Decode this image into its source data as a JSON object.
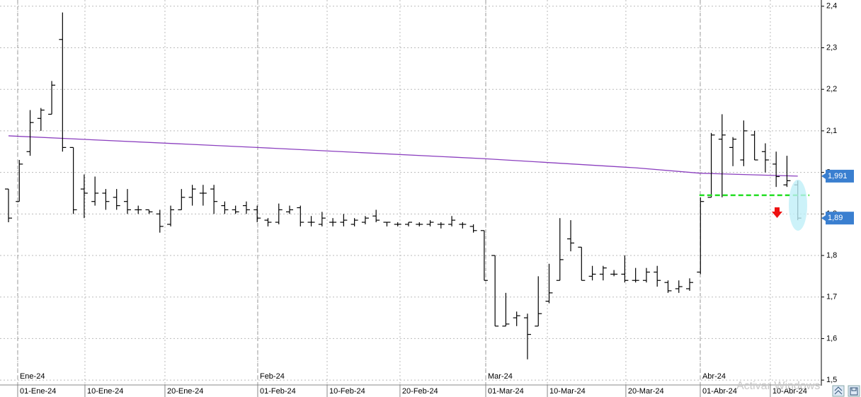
{
  "chart_data": {
    "type": "ohlc",
    "color": "#000000",
    "open": [
      1.96,
      1.93,
      2.05,
      2.13,
      2.14,
      2.32,
      2.06,
      1.96,
      1.93,
      1.95,
      1.94,
      1.93,
      1.91,
      1.91,
      1.9,
      1.875,
      1.91,
      1.94,
      1.95,
      1.96,
      1.92,
      1.91,
      1.92,
      1.91,
      1.885,
      1.88,
      1.905,
      1.915,
      1.88,
      1.875,
      1.88,
      1.88,
      1.875,
      1.88,
      1.895,
      1.88,
      1.875,
      1.875,
      1.875,
      1.875,
      1.875,
      1.875,
      1.875,
      1.87,
      1.86,
      1.8,
      1.63,
      1.65,
      1.65,
      1.63,
      1.69,
      1.74,
      1.84,
      1.82,
      1.75,
      1.755,
      1.755,
      1.755,
      1.74,
      1.74,
      1.76,
      1.735,
      1.72,
      1.72,
      1.76,
      1.94,
      2.08,
      2.06,
      2.03,
      2.09,
      2.05,
      2.02,
      1.97,
      1.97
    ],
    "high": [
      1.96,
      2.03,
      2.15,
      2.155,
      2.22,
      2.385,
      2.06,
      1.995,
      1.99,
      1.96,
      1.96,
      1.96,
      1.92,
      1.91,
      1.91,
      1.92,
      1.96,
      1.97,
      1.97,
      1.97,
      1.93,
      1.92,
      1.93,
      1.92,
      1.89,
      1.925,
      1.92,
      1.92,
      1.895,
      1.905,
      1.89,
      1.9,
      1.89,
      1.895,
      1.91,
      1.88,
      1.88,
      1.88,
      1.88,
      1.885,
      1.88,
      1.895,
      1.88,
      1.875,
      1.86,
      1.8,
      1.71,
      1.665,
      1.66,
      1.75,
      1.78,
      1.89,
      1.885,
      1.82,
      1.775,
      1.775,
      1.765,
      1.8,
      1.77,
      1.77,
      1.775,
      1.74,
      1.74,
      1.745,
      1.94,
      2.095,
      2.14,
      2.085,
      2.125,
      2.1,
      2.07,
      2.05,
      2.04,
      1.98
    ],
    "low": [
      1.88,
      1.93,
      2.04,
      2.1,
      2.14,
      2.05,
      1.9,
      1.89,
      1.92,
      1.91,
      1.91,
      1.9,
      1.9,
      1.9,
      1.855,
      1.87,
      1.91,
      1.92,
      1.92,
      1.9,
      1.9,
      1.9,
      1.9,
      1.88,
      1.87,
      1.875,
      1.9,
      1.87,
      1.87,
      1.87,
      1.87,
      1.87,
      1.87,
      1.875,
      1.88,
      1.87,
      1.87,
      1.87,
      1.87,
      1.87,
      1.865,
      1.87,
      1.865,
      1.855,
      1.74,
      1.63,
      1.63,
      1.63,
      1.55,
      1.63,
      1.685,
      1.74,
      1.81,
      1.74,
      1.74,
      1.74,
      1.75,
      1.735,
      1.735,
      1.735,
      1.725,
      1.71,
      1.71,
      1.715,
      1.755,
      1.94,
      1.94,
      2.015,
      2.015,
      2.03,
      2.0,
      1.965,
      1.965,
      1.885
    ],
    "close": [
      1.89,
      2.02,
      2.12,
      2.15,
      2.21,
      2.06,
      1.91,
      1.95,
      1.95,
      1.93,
      1.92,
      1.91,
      1.91,
      1.905,
      1.87,
      1.91,
      1.94,
      1.96,
      1.95,
      1.93,
      1.91,
      1.905,
      1.91,
      1.89,
      1.88,
      1.91,
      1.91,
      1.88,
      1.88,
      1.89,
      1.88,
      1.885,
      1.885,
      1.89,
      1.885,
      1.88,
      1.875,
      1.88,
      1.875,
      1.88,
      1.875,
      1.885,
      1.875,
      1.86,
      1.74,
      1.63,
      1.635,
      1.655,
      1.61,
      1.66,
      1.71,
      1.79,
      1.83,
      1.74,
      1.755,
      1.77,
      1.755,
      1.74,
      1.74,
      1.76,
      1.74,
      1.715,
      1.725,
      1.735,
      1.93,
      2.09,
      2.09,
      2.08,
      2.1,
      2.03,
      2.03,
      1.99,
      1.98,
      1.89
    ],
    "ylim": [
      1.49,
      2.415
    ],
    "yticks": [
      {
        "value": 1.5,
        "label": "1,5"
      },
      {
        "value": 1.6,
        "label": "1,6"
      },
      {
        "value": 1.7,
        "label": "1,7"
      },
      {
        "value": 1.8,
        "label": "1,8"
      },
      {
        "value": 1.9,
        "label": "1,9"
      },
      {
        "value": 2.0,
        "label": "2"
      },
      {
        "value": 2.1,
        "label": "2,1"
      },
      {
        "value": 2.2,
        "label": "2,2"
      },
      {
        "value": 2.3,
        "label": "2,3"
      },
      {
        "value": 2.4,
        "label": "2,4"
      }
    ],
    "xticks": [
      {
        "value": 0.85,
        "label": "01-Ene-24"
      },
      {
        "value": 7.07,
        "label": "10-Ene-24"
      },
      {
        "value": 14.47,
        "label": "20-Ene-24"
      },
      {
        "value": 23.05,
        "label": "01-Feb-24"
      },
      {
        "value": 29.47,
        "label": "10-Feb-24"
      },
      {
        "value": 36.21,
        "label": "20-Feb-24"
      },
      {
        "value": 44.14,
        "label": "01-Mar-24"
      },
      {
        "value": 49.84,
        "label": "10-Mar-24"
      },
      {
        "value": 57.1,
        "label": "20-Mar-24"
      },
      {
        "value": 63.98,
        "label": "01-Abr-24"
      },
      {
        "value": 70.46,
        "label": "10-Abr-24"
      }
    ],
    "month_ticks": [
      {
        "value": 0.85,
        "label": "Ene-24"
      },
      {
        "value": 23.05,
        "label": "Feb-24"
      },
      {
        "value": 44.14,
        "label": "Mar-24"
      },
      {
        "value": 63.98,
        "label": "Abr-24"
      }
    ],
    "overlays": [
      {
        "type": "line",
        "color": "#8b3fbf",
        "x": [
          0,
          23,
          44,
          58,
          64,
          73
        ],
        "values": [
          2.088,
          2.06,
          2.033,
          2.011,
          1.998,
          1.991
        ]
      }
    ],
    "level": {
      "value": 1.945,
      "color": "#22dd22"
    },
    "last_labels": [
      {
        "value": 1.991,
        "label": "1,991"
      },
      {
        "value": 1.89,
        "label": "1,89"
      }
    ],
    "grid": true,
    "watermark": "Activar Windows"
  }
}
